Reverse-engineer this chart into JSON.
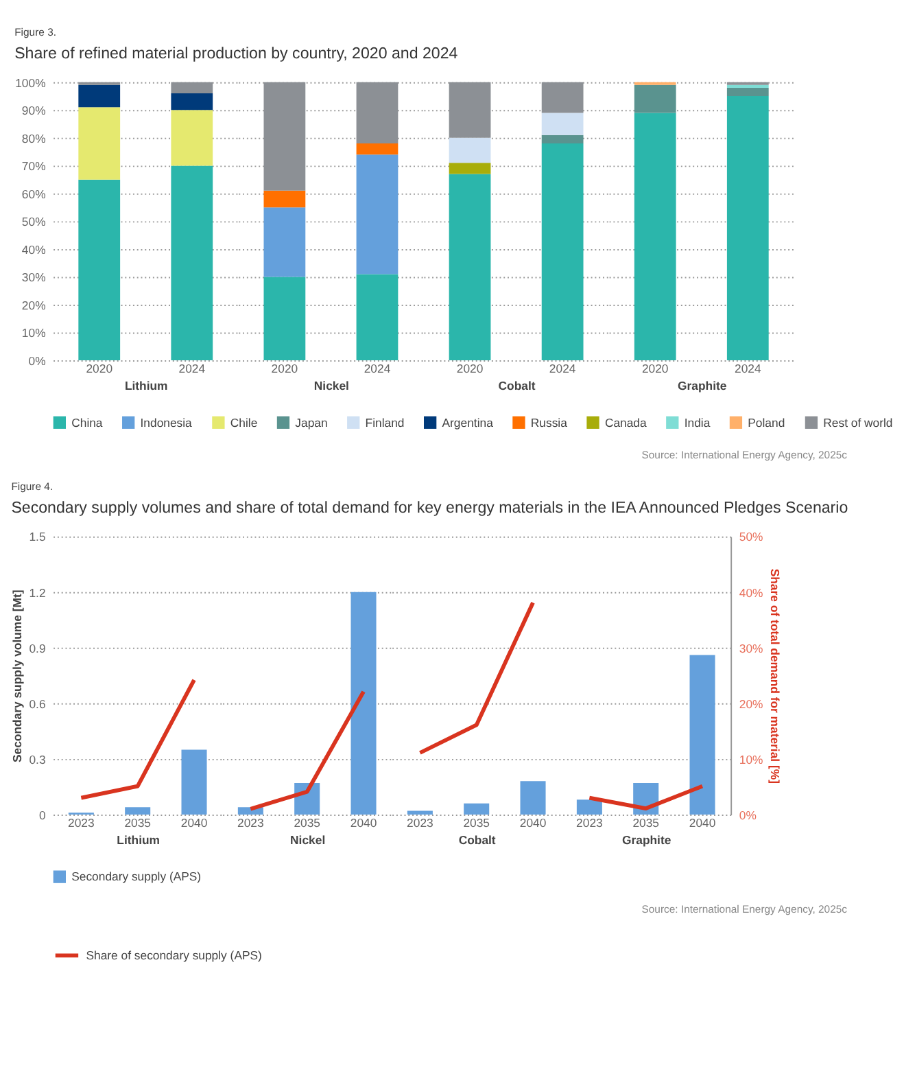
{
  "chart_data": [
    {
      "type": "bar",
      "stacked": true,
      "title": "Share of refined material production by country, 2020 and 2024",
      "annotations": [
        "Figure 3."
      ],
      "categories": [
        "2020",
        "2024"
      ],
      "xlabel": "Lithium",
      "ylim": [
        0,
        100
      ],
      "yticks": [
        {
          "value": 0,
          "label": "0%"
        },
        {
          "value": 10,
          "label": "10%"
        },
        {
          "value": 20,
          "label": "20%"
        },
        {
          "value": 30,
          "label": "30%"
        },
        {
          "value": 40,
          "label": "40%"
        },
        {
          "value": 50,
          "label": "50%"
        },
        {
          "value": 60,
          "label": "60%"
        },
        {
          "value": 70,
          "label": "70%"
        },
        {
          "value": 80,
          "label": "80%"
        },
        {
          "value": 90,
          "label": "90%"
        },
        {
          "value": 100,
          "label": "100%"
        }
      ],
      "grid": "y",
      "legend": "bottom",
      "series": [
        {
          "name": "China",
          "color": "#2bb6ab",
          "values": [
            65,
            70
          ]
        },
        {
          "name": "Indonesia",
          "color": "#64a0dc",
          "values": [
            null,
            null
          ]
        },
        {
          "name": "Chile",
          "color": "#e5e96f",
          "values": [
            26,
            20
          ]
        },
        {
          "name": "Japan",
          "color": "#5a938f",
          "values": [
            null,
            null
          ]
        },
        {
          "name": "Finland",
          "color": "#cfe0f3",
          "values": [
            null,
            null
          ]
        },
        {
          "name": "Argentina",
          "color": "#003a7a",
          "values": [
            8,
            6
          ]
        },
        {
          "name": "Russia",
          "color": "#ff7000",
          "values": [
            null,
            null
          ]
        },
        {
          "name": "Canada",
          "color": "#a8ad0a",
          "values": [
            null,
            null
          ]
        },
        {
          "name": "India",
          "color": "#7fddd5",
          "values": [
            null,
            null
          ]
        },
        {
          "name": "Poland",
          "color": "#ffb06a",
          "values": [
            null,
            null
          ]
        },
        {
          "name": "Rest of world",
          "color": "#8c9095",
          "values": [
            1,
            4
          ]
        }
      ]
    },
    {
      "type": "bar",
      "stacked": true,
      "categories": [
        "2020",
        "2024"
      ],
      "xlabel": "Nickel",
      "ylim": [
        0,
        100
      ],
      "yticks": [
        0,
        10,
        20,
        30,
        40,
        50,
        60,
        70,
        80,
        90,
        100
      ],
      "grid": "y",
      "tick_labels": "x",
      "series": [
        {
          "color": "#2bb6ab",
          "values": [
            30,
            31
          ]
        },
        {
          "color": "#64a0dc",
          "values": [
            25,
            43
          ]
        },
        {
          "color": "#ff7000",
          "values": [
            6,
            4
          ]
        },
        {
          "color": "#8c9095",
          "values": [
            39,
            22
          ]
        }
      ]
    },
    {
      "type": "bar",
      "stacked": true,
      "categories": [
        "2020",
        "2024"
      ],
      "xlabel": "Cobalt",
      "ylim": [
        0,
        100
      ],
      "yticks": [
        0,
        10,
        20,
        30,
        40,
        50,
        60,
        70,
        80,
        90,
        100
      ],
      "grid": "y",
      "tick_labels": "x",
      "series": [
        {
          "color": "#2bb6ab",
          "values": [
            67,
            78
          ]
        },
        {
          "color": "#5a938f",
          "values": [
            null,
            3
          ]
        },
        {
          "color": "#a8ad0a",
          "values": [
            4,
            null
          ]
        },
        {
          "color": "#cfe0f3",
          "values": [
            9,
            8
          ]
        },
        {
          "color": "#8c9095",
          "values": [
            20,
            11
          ]
        }
      ]
    },
    {
      "type": "bar",
      "stacked": true,
      "categories": [
        "2020",
        "2024"
      ],
      "xlabel": "Graphite",
      "ylim": [
        0,
        100
      ],
      "yticks": [
        0,
        10,
        20,
        30,
        40,
        50,
        60,
        70,
        80,
        90,
        100
      ],
      "grid": "y",
      "tick_labels": "x",
      "annotations": [
        "Source: International Energy Agency, 2025c"
      ],
      "series": [
        {
          "color": "#2bb6ab",
          "values": [
            89,
            95
          ]
        },
        {
          "color": "#5a938f",
          "values": [
            10,
            3
          ]
        },
        {
          "color": "#7fddd5",
          "values": [
            null,
            1
          ]
        },
        {
          "color": "#ffb06a",
          "values": [
            1,
            null
          ]
        },
        {
          "color": "#8c9095",
          "values": [
            null,
            1
          ]
        }
      ]
    },
    {
      "type": "bar",
      "title": "Secondary supply volumes and share of total demand for key energy materials in the IEA Announced Pledges Scenario",
      "annotations": [
        "Figure 4."
      ],
      "categories": [
        "2023",
        "2035",
        "2040"
      ],
      "xlabel": "Lithium",
      "ylabel": "Secondary supply volume [Mt]",
      "ylim": [
        0,
        1.5
      ],
      "yticks": [
        {
          "value": 0,
          "label": "0"
        },
        0.3,
        0.6,
        0.9,
        1.2,
        1.5
      ],
      "y2lim": [
        0,
        50
      ],
      "grid": "y",
      "legend": "bottom",
      "series": [
        {
          "name": "Secondary supply (APS)",
          "color": "#64a0dc",
          "values": [
            0.01,
            0.04,
            0.35
          ]
        },
        {
          "name": "Share of secondary supply (APS)",
          "type": "line",
          "axis": "y2",
          "color": "#d9341f",
          "values": [
            3.0,
            5.1,
            24.2
          ]
        }
      ]
    },
    {
      "type": "bar",
      "categories": [
        "2023",
        "2035",
        "2040"
      ],
      "xlabel": "Nickel",
      "ylim": [
        0,
        1.5
      ],
      "yticks": [
        0,
        0.3,
        0.6,
        0.9,
        1.2,
        1.5
      ],
      "y2lim": [
        0,
        50
      ],
      "grid": "y",
      "tick_labels": "x",
      "series": [
        {
          "color": "#64a0dc",
          "values": [
            0.04,
            0.17,
            1.2
          ]
        },
        {
          "type": "line",
          "axis": "y2",
          "color": "#d9341f",
          "values": [
            1.0,
            4.1,
            22.1
          ]
        }
      ]
    },
    {
      "type": "bar",
      "categories": [
        "2023",
        "2035",
        "2040"
      ],
      "xlabel": "Cobalt",
      "ylim": [
        0,
        1.5
      ],
      "yticks": [
        0,
        0.3,
        0.6,
        0.9,
        1.2,
        1.5
      ],
      "y2lim": [
        0,
        50
      ],
      "grid": "y",
      "tick_labels": "x",
      "series": [
        {
          "color": "#64a0dc",
          "values": [
            0.02,
            0.06,
            0.18
          ]
        },
        {
          "type": "line",
          "axis": "y2",
          "color": "#d9341f",
          "values": [
            11.1,
            16.1,
            38.1
          ]
        }
      ]
    },
    {
      "type": "bar",
      "categories": [
        "2023",
        "2035",
        "2040"
      ],
      "xlabel": "Graphite",
      "y2label": "Share of total demand for material [%]",
      "ylim": [
        0,
        1.5
      ],
      "y2lim": [
        0,
        50
      ],
      "y2ticks": [
        {
          "value": 0,
          "label": "0%"
        },
        {
          "value": 10,
          "label": "10%"
        },
        {
          "value": 20,
          "label": "20%"
        },
        {
          "value": 30,
          "label": "30%"
        },
        {
          "value": 40,
          "label": "40%"
        },
        {
          "value": 50,
          "label": "50%"
        }
      ],
      "grid": "y",
      "annotations": [
        "Source: International Energy Agency, 2025c"
      ],
      "series": [
        {
          "color": "#64a0dc",
          "values": [
            0.08,
            0.17,
            0.86
          ]
        },
        {
          "type": "line",
          "axis": "y2",
          "color": "#d9341f",
          "values": [
            3.0,
            1.1,
            5.1
          ]
        }
      ]
    }
  ]
}
